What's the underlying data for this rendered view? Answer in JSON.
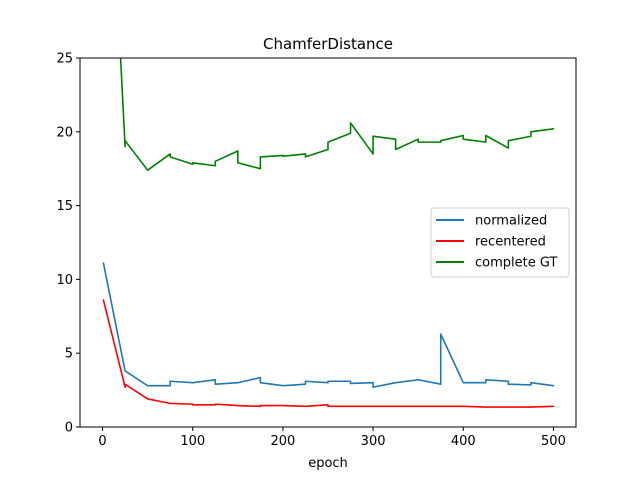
{
  "chart_data": {
    "type": "line",
    "title": "ChamferDistance",
    "xlabel": "epoch",
    "ylabel": "",
    "xlim": [
      -25,
      525
    ],
    "ylim": [
      0,
      25
    ],
    "xticks": [
      0,
      100,
      200,
      300,
      400,
      500
    ],
    "yticks": [
      0,
      5,
      10,
      15,
      20,
      25
    ],
    "legend_position": "center-right",
    "grid": false,
    "series": [
      {
        "name": "normalized",
        "color": "#1f77b4",
        "points": [
          [
            1,
            11.1
          ],
          [
            25,
            3.8
          ],
          [
            50,
            2.8
          ],
          [
            75,
            2.8
          ],
          [
            75,
            3.1
          ],
          [
            100,
            3.0
          ],
          [
            125,
            3.2
          ],
          [
            125,
            2.9
          ],
          [
            150,
            3.0
          ],
          [
            175,
            3.35
          ],
          [
            175,
            3.0
          ],
          [
            200,
            2.8
          ],
          [
            225,
            2.9
          ],
          [
            225,
            3.1
          ],
          [
            250,
            3.0
          ],
          [
            250,
            3.1
          ],
          [
            275,
            3.1
          ],
          [
            275,
            2.95
          ],
          [
            300,
            3.0
          ],
          [
            300,
            2.7
          ],
          [
            325,
            3.0
          ],
          [
            350,
            3.2
          ],
          [
            375,
            2.9
          ],
          [
            375,
            6.3
          ],
          [
            400,
            3.0
          ],
          [
            425,
            3.0
          ],
          [
            425,
            3.2
          ],
          [
            450,
            3.1
          ],
          [
            450,
            2.9
          ],
          [
            475,
            2.85
          ],
          [
            475,
            3.0
          ],
          [
            500,
            2.8
          ]
        ]
      },
      {
        "name": "recentered",
        "color": "#ff0000",
        "points": [
          [
            1,
            8.6
          ],
          [
            25,
            2.7
          ],
          [
            25,
            2.9
          ],
          [
            50,
            1.9
          ],
          [
            75,
            1.6
          ],
          [
            100,
            1.55
          ],
          [
            100,
            1.5
          ],
          [
            125,
            1.5
          ],
          [
            125,
            1.55
          ],
          [
            150,
            1.45
          ],
          [
            175,
            1.4
          ],
          [
            175,
            1.45
          ],
          [
            200,
            1.45
          ],
          [
            225,
            1.4
          ],
          [
            250,
            1.5
          ],
          [
            250,
            1.4
          ],
          [
            275,
            1.4
          ],
          [
            300,
            1.4
          ],
          [
            325,
            1.4
          ],
          [
            350,
            1.4
          ],
          [
            375,
            1.4
          ],
          [
            400,
            1.4
          ],
          [
            425,
            1.35
          ],
          [
            450,
            1.35
          ],
          [
            475,
            1.35
          ],
          [
            500,
            1.4
          ]
        ]
      },
      {
        "name": "complete GT",
        "color": "#008000",
        "points": [
          [
            20,
            25.0
          ],
          [
            25,
            19.0
          ],
          [
            25,
            19.4
          ],
          [
            50,
            17.4
          ],
          [
            75,
            18.5
          ],
          [
            75,
            18.3
          ],
          [
            100,
            17.8
          ],
          [
            100,
            17.9
          ],
          [
            125,
            17.7
          ],
          [
            125,
            18.0
          ],
          [
            150,
            18.7
          ],
          [
            150,
            17.9
          ],
          [
            175,
            17.5
          ],
          [
            175,
            18.3
          ],
          [
            200,
            18.4
          ],
          [
            200,
            18.35
          ],
          [
            225,
            18.5
          ],
          [
            225,
            18.3
          ],
          [
            250,
            18.8
          ],
          [
            250,
            19.3
          ],
          [
            275,
            19.9
          ],
          [
            275,
            20.6
          ],
          [
            300,
            18.5
          ],
          [
            300,
            19.7
          ],
          [
            325,
            19.5
          ],
          [
            325,
            18.8
          ],
          [
            350,
            19.5
          ],
          [
            350,
            19.3
          ],
          [
            375,
            19.3
          ],
          [
            375,
            19.4
          ],
          [
            400,
            19.75
          ],
          [
            400,
            19.5
          ],
          [
            425,
            19.3
          ],
          [
            425,
            19.75
          ],
          [
            450,
            18.9
          ],
          [
            450,
            19.4
          ],
          [
            475,
            19.7
          ],
          [
            475,
            20.0
          ],
          [
            500,
            20.2
          ]
        ]
      }
    ]
  }
}
